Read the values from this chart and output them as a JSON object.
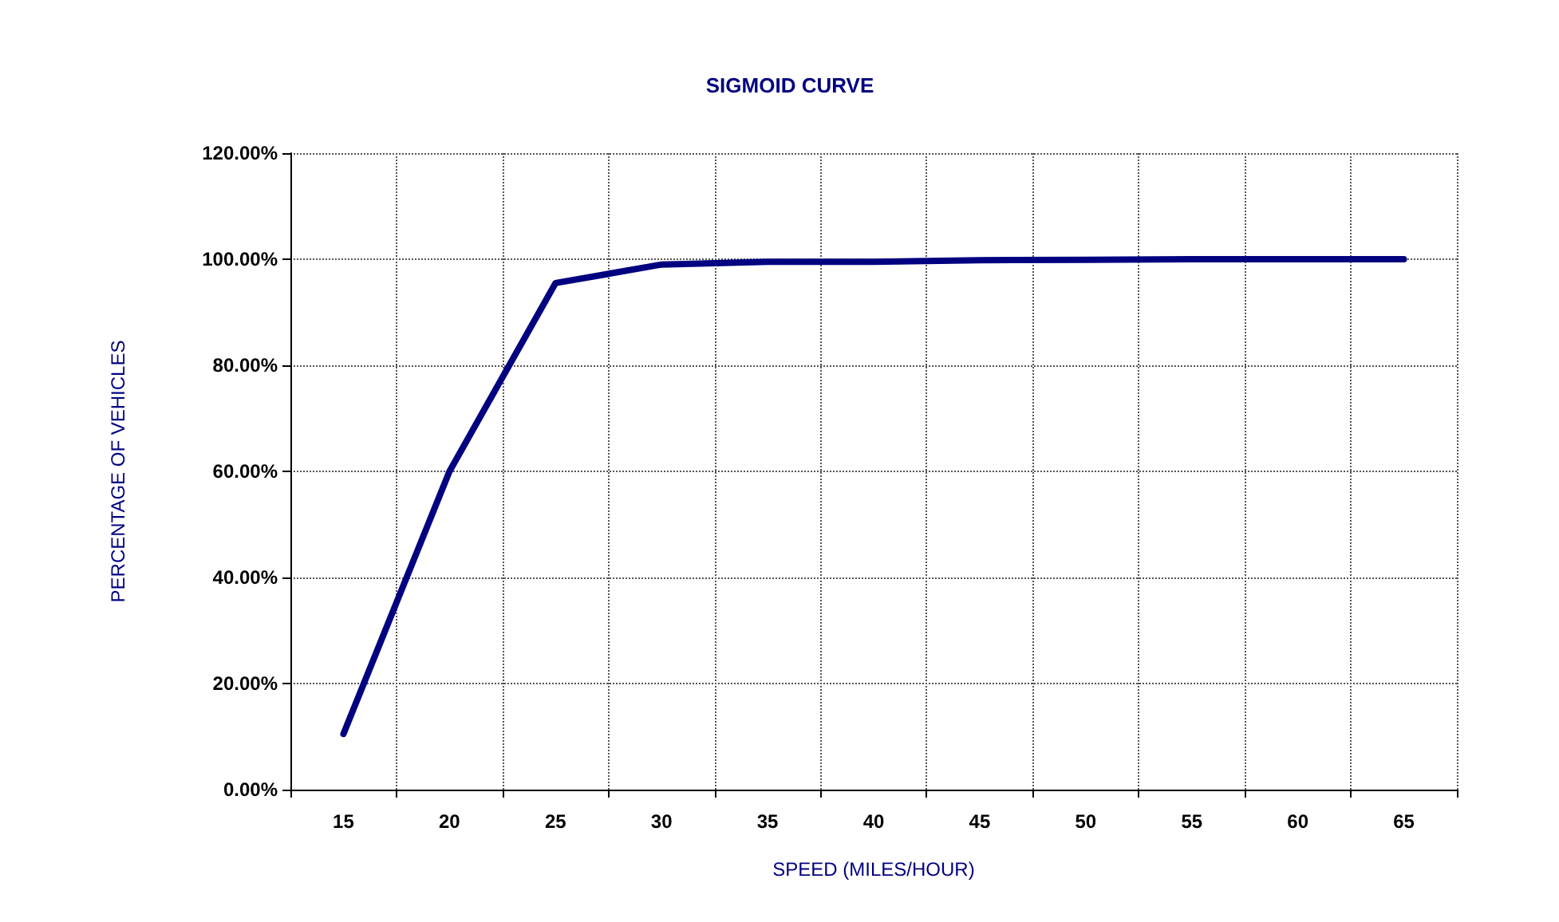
{
  "chart_data": {
    "type": "line",
    "title": "SIGMOID CURVE",
    "xlabel": "SPEED (MILES/HOUR)",
    "ylabel": "PERCENTAGE OF VEHICLES",
    "categories": [
      "15",
      "20",
      "25",
      "30",
      "35",
      "40",
      "45",
      "50",
      "55",
      "60",
      "65"
    ],
    "series": [
      {
        "color": "#000080",
        "values": [
          10.5,
          60,
          95.5,
          99,
          99.5,
          99.5,
          99.8,
          99.9,
          100,
          100,
          100
        ]
      }
    ],
    "ylim": [
      0,
      120
    ],
    "yticks": [
      {
        "value": 0,
        "label": "0.00%"
      },
      {
        "value": 20,
        "label": "20.00%"
      },
      {
        "value": 40,
        "label": "40.00%"
      },
      {
        "value": 60,
        "label": "60.00%"
      },
      {
        "value": 80,
        "label": "80.00%"
      },
      {
        "value": 100,
        "label": "100.00%"
      },
      {
        "value": 120,
        "label": "120.00%"
      }
    ],
    "grid": true,
    "marker": "none",
    "line_style": "solid"
  }
}
